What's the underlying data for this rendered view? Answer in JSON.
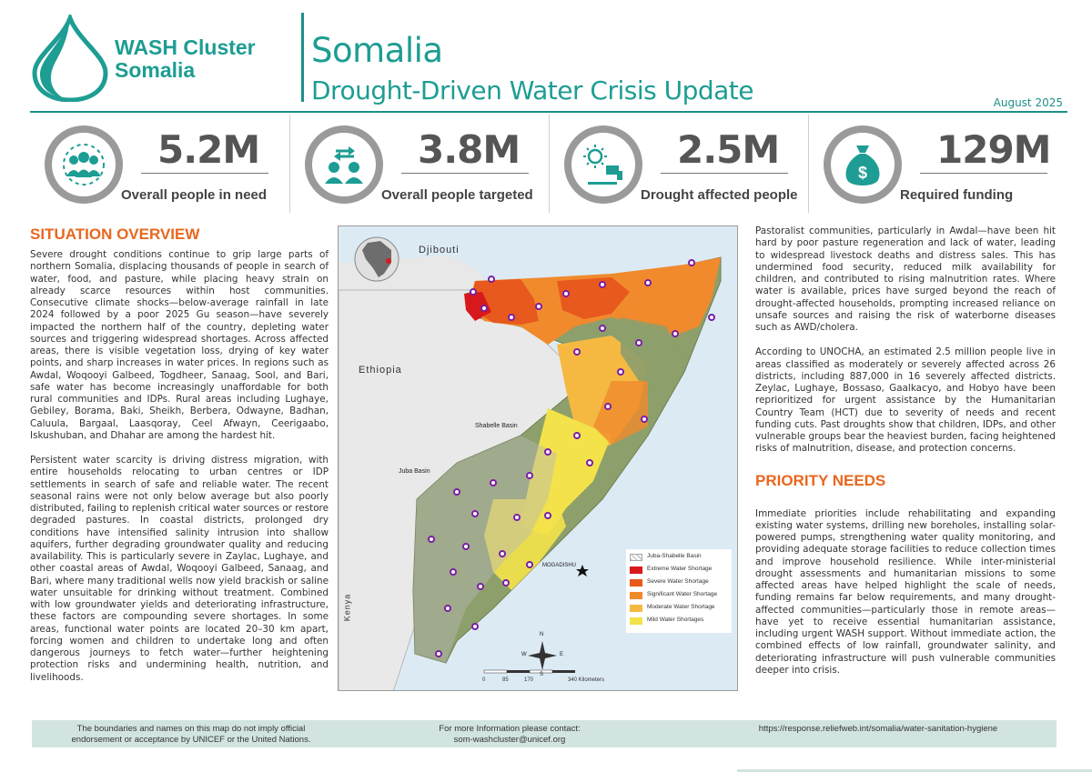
{
  "header": {
    "logo_line1": "WASH Cluster",
    "logo_line2": "Somalia",
    "title": "Somalia",
    "subtitle": "Drought-Driven Water Crisis Update",
    "date": "August 2025",
    "brand_color": "#1d9d93"
  },
  "stats": [
    {
      "value": "5.2M",
      "label": "Overall people in need",
      "icon": "people-group-icon"
    },
    {
      "value": "3.8M",
      "label": "Overall people targeted",
      "icon": "people-transfer-icon"
    },
    {
      "value": "2.5M",
      "label": "Drought affected people",
      "icon": "drought-tap-icon"
    },
    {
      "value": "129M",
      "label": "Required funding",
      "icon": "money-bag-icon"
    }
  ],
  "situation": {
    "title": "SITUATION OVERVIEW",
    "p1": "Severe drought conditions continue to grip large parts of northern Somalia, displacing thousands of people in search of water, food, and pasture, while placing heavy strain on already scarce resources within host communities. Consecutive climate shocks—below-average rainfall in late 2024 followed by a poor 2025 Gu season—have severely impacted the northern half of the country, depleting water sources and triggering widespread shortages. Across affected areas, there is visible vegetation loss, drying of key water points, and sharp increases in water prices. In regions such as Awdal, Woqooyi Galbeed, Togdheer, Sanaag, Sool, and Bari, safe water has become increasingly unaffordable for both rural communities and IDPs. Rural areas including Lughaye, Gebiley, Borama, Baki, Sheikh, Berbera, Odwayne, Badhan, Caluula, Bargaal, Laasqoray, Ceel Afwayn, Ceerigaabo, Iskushuban, and Dhahar are among the hardest hit.",
    "p2": "Persistent water scarcity is driving distress migration, with entire households relocating to urban centres or IDP settlements in search of safe and reliable water. The recent seasonal rains were not only below average but also poorly distributed, failing to replenish critical water sources or restore degraded pastures. In coastal districts, prolonged dry conditions have intensified salinity intrusion into shallow aquifers, further degrading groundwater quality and reducing availability. This is particularly severe in Zaylac, Lughaye, and other coastal areas of Awdal, Woqooyi Galbeed, Sanaag, and Bari, where many traditional wells now yield brackish or saline water unsuitable for drinking without treatment. Combined with low groundwater yields and deteriorating infrastructure, these factors are compounding severe shortages. In some areas, functional water points are located 20–30 km apart, forcing women and children to undertake long and often dangerous journeys to fetch water—further heightening protection risks and undermining health, nutrition, and livelihoods."
  },
  "map": {
    "labels": {
      "djibouti": "Djibouti",
      "ethiopia": "Ethiopia",
      "kenya": "Kenya",
      "shabelle": "Shabelle Basin",
      "juba": "Juba Basin",
      "mogadishu": "MOGADISHU"
    },
    "legend": [
      {
        "label": "Juba-Shabelle Basin",
        "color": "#d9d9d9"
      },
      {
        "label": "Extreme Water Shortage",
        "color": "#d7191c"
      },
      {
        "label": "Severe Water Shortage",
        "color": "#e8591e"
      },
      {
        "label": "Significant Water Shortage",
        "color": "#f08a2c"
      },
      {
        "label": "Moderate Water Shortage",
        "color": "#f5b942"
      },
      {
        "label": "Mild Water Shortages",
        "color": "#f3e24a"
      }
    ],
    "scale": [
      "0",
      "85",
      "170",
      "340 Kilometers"
    ],
    "compass": [
      "N",
      "S",
      "E",
      "W"
    ]
  },
  "right": {
    "p3": "Pastoralist communities, particularly in Awdal—have been hit hard by poor pasture regeneration and lack of water, leading to widespread livestock deaths and distress sales. This has undermined food security, reduced milk availability for children, and contributed to rising malnutrition rates. Where water is available, prices have surged beyond the reach of drought-affected households, prompting increased reliance on unsafe sources and raising the risk of waterborne diseases such as AWD/cholera.",
    "p4": "According to UNOCHA, an estimated 2.5 million people live in areas classified as moderately or severely affected across 26 districts, including 887,000 in 16 severely affected districts. Zeylac, Lughaye, Bossaso, Gaalkacyo, and Hobyo have been reprioritized for urgent assistance by the Humanitarian Country Team (HCT) due to severity of needs and recent funding cuts. Past droughts show that children, IDPs, and other vulnerable groups bear the heaviest burden, facing heightened risks of malnutrition, disease, and protection concerns.",
    "priority_title": "PRIORITY NEEDS",
    "p5": "Immediate priorities include rehabilitating and expanding existing water systems, drilling new boreholes, installing solar-powered pumps, strengthening water quality monitoring, and providing adequate storage facilities to reduce collection times and improve household resilience. While inter-ministerial drought assessments and humanitarian missions to some affected areas have helped highlight the scale of needs, funding remains far below requirements, and many drought-affected communities—particularly those in remote areas—have yet to receive essential humanitarian assistance, including urgent WASH support. Without immediate action, the combined effects of low rainfall, groundwater salinity, and deteriorating infrastructure will push vulnerable communities deeper into crisis."
  },
  "footer": {
    "disclaimer_line1": "The boundaries and names on this map do not imply official",
    "disclaimer_line2": "endorsement or acceptance by UNICEF or the United Nations.",
    "contact_line1": "For more Information please contact:",
    "contact_line2": "som-washcluster@unicef.org",
    "link": "https://response.reliefweb.int/somalia/water-sanitation-hygiene"
  }
}
